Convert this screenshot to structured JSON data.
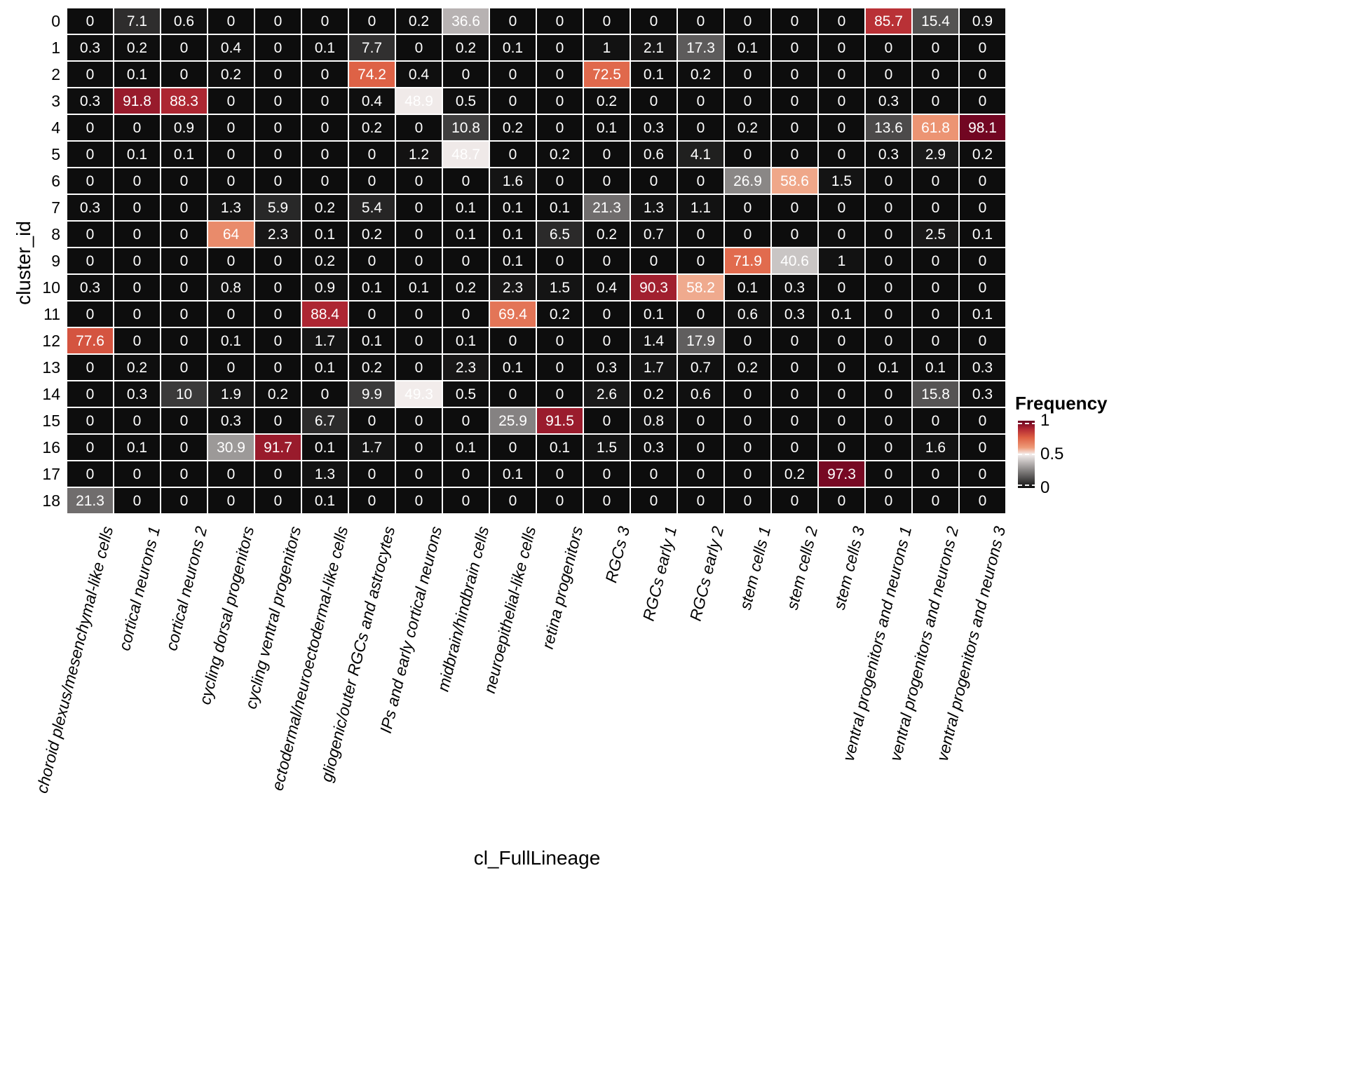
{
  "chart_data": {
    "type": "heatmap",
    "title": "",
    "xlabel": "cl_FullLineage",
    "ylabel": "cluster_id",
    "columns": [
      "choroid plexus/mesenchymal-like cells",
      "cortical neurons 1",
      "cortical neurons 2",
      "cycling dorsal progenitors",
      "cycling ventral progenitors",
      "ectodermal/neuroectodermal-like cells",
      "gliogenic/outer RGCs and astrocytes",
      "IPs and early cortical neurons",
      "midbrain/hindbrain cells",
      "neuroepithelial-like cells",
      "retina progenitors",
      "RGCs 3",
      "RGCs early 1",
      "RGCs early 2",
      "stem cells 1",
      "stem cells 2",
      "stem cells 3",
      "ventral progenitors and neurons 1",
      "ventral progenitors and neurons 2",
      "ventral progenitors and neurons 3"
    ],
    "rows": [
      "0",
      "1",
      "2",
      "3",
      "4",
      "5",
      "6",
      "7",
      "8",
      "9",
      "10",
      "11",
      "12",
      "13",
      "14",
      "15",
      "16",
      "17",
      "18"
    ],
    "values": [
      [
        "0",
        "7.1",
        "0.6",
        "0",
        "0",
        "0",
        "0",
        "0.2",
        "36.6",
        "0",
        "0",
        "0",
        "0",
        "0",
        "0",
        "0",
        "0",
        "85.7",
        "15.4",
        "0.9"
      ],
      [
        "0.3",
        "0.2",
        "0",
        "0.4",
        "0",
        "0.1",
        "7.7",
        "0",
        "0.2",
        "0.1",
        "0",
        "1",
        "2.1",
        "17.3",
        "0.1",
        "0",
        "0",
        "0",
        "0",
        "0"
      ],
      [
        "0",
        "0.1",
        "0",
        "0.2",
        "0",
        "0",
        "74.2",
        "0.4",
        "0",
        "0",
        "0",
        "72.5",
        "0.1",
        "0.2",
        "0",
        "0",
        "0",
        "0",
        "0",
        "0"
      ],
      [
        "0.3",
        "91.8",
        "88.3",
        "0",
        "0",
        "0",
        "0.4",
        "48.9",
        "0.5",
        "0",
        "0",
        "0.2",
        "0",
        "0",
        "0",
        "0",
        "0",
        "0.3",
        "0",
        "0"
      ],
      [
        "0",
        "0",
        "0.9",
        "0",
        "0",
        "0",
        "0.2",
        "0",
        "10.8",
        "0.2",
        "0",
        "0.1",
        "0.3",
        "0",
        "0.2",
        "0",
        "0",
        "13.6",
        "61.8",
        "98.1"
      ],
      [
        "0",
        "0.1",
        "0.1",
        "0",
        "0",
        "0",
        "0",
        "1.2",
        "48.7",
        "0",
        "0.2",
        "0",
        "0.6",
        "4.1",
        "0",
        "0",
        "0",
        "0.3",
        "2.9",
        "0.2"
      ],
      [
        "0",
        "0",
        "0",
        "0",
        "0",
        "0",
        "0",
        "0",
        "0",
        "1.6",
        "0",
        "0",
        "0",
        "0",
        "26.9",
        "58.6",
        "1.5",
        "0",
        "0",
        "0"
      ],
      [
        "0.3",
        "0",
        "0",
        "1.3",
        "5.9",
        "0.2",
        "5.4",
        "0",
        "0.1",
        "0.1",
        "0.1",
        "21.3",
        "1.3",
        "1.1",
        "0",
        "0",
        "0",
        "0",
        "0",
        "0"
      ],
      [
        "0",
        "0",
        "0",
        "64",
        "2.3",
        "0.1",
        "0.2",
        "0",
        "0.1",
        "0.1",
        "6.5",
        "0.2",
        "0.7",
        "0",
        "0",
        "0",
        "0",
        "0",
        "2.5",
        "0.1"
      ],
      [
        "0",
        "0",
        "0",
        "0",
        "0",
        "0.2",
        "0",
        "0",
        "0",
        "0.1",
        "0",
        "0",
        "0",
        "0",
        "71.9",
        "40.6",
        "1",
        "0",
        "0",
        "0"
      ],
      [
        "0.3",
        "0",
        "0",
        "0.8",
        "0",
        "0.9",
        "0.1",
        "0.1",
        "0.2",
        "2.3",
        "1.5",
        "0.4",
        "90.3",
        "58.2",
        "0.1",
        "0.3",
        "0",
        "0",
        "0",
        "0"
      ],
      [
        "0",
        "0",
        "0",
        "0",
        "0",
        "88.4",
        "0",
        "0",
        "0",
        "69.4",
        "0.2",
        "0",
        "0.1",
        "0",
        "0.6",
        "0.3",
        "0.1",
        "0",
        "0",
        "0.1"
      ],
      [
        "77.6",
        "0",
        "0",
        "0.1",
        "0",
        "1.7",
        "0.1",
        "0",
        "0.1",
        "0",
        "0",
        "0",
        "1.4",
        "17.9",
        "0",
        "0",
        "0",
        "0",
        "0",
        "0"
      ],
      [
        "0",
        "0.2",
        "0",
        "0",
        "0",
        "0.1",
        "0.2",
        "0",
        "2.3",
        "0.1",
        "0",
        "0.3",
        "1.7",
        "0.7",
        "0.2",
        "0",
        "0",
        "0.1",
        "0.1",
        "0.3"
      ],
      [
        "0",
        "0.3",
        "10",
        "1.9",
        "0.2",
        "0",
        "9.9",
        "49.3",
        "0.5",
        "0",
        "0",
        "2.6",
        "0.2",
        "0.6",
        "0",
        "0",
        "0",
        "0",
        "15.8",
        "0.3"
      ],
      [
        "0",
        "0",
        "0",
        "0.3",
        "0",
        "6.7",
        "0",
        "0",
        "0",
        "25.9",
        "91.5",
        "0",
        "0.8",
        "0",
        "0",
        "0",
        "0",
        "0",
        "0",
        "0"
      ],
      [
        "0",
        "0.1",
        "0",
        "30.9",
        "91.7",
        "0.1",
        "1.7",
        "0",
        "0.1",
        "0",
        "0.1",
        "1.5",
        "0.3",
        "0",
        "0",
        "0",
        "0",
        "0",
        "1.6",
        "0"
      ],
      [
        "0",
        "0",
        "0",
        "0",
        "0",
        "1.3",
        "0",
        "0",
        "0",
        "0.1",
        "0",
        "0",
        "0",
        "0",
        "0",
        "0.2",
        "97.3",
        "0",
        "0",
        "0"
      ],
      [
        "21.3",
        "0",
        "0",
        "0",
        "0",
        "0.1",
        "0",
        "0",
        "0",
        "0",
        "0",
        "0",
        "0",
        "0",
        "0",
        "0",
        "0",
        "0",
        "0",
        "0"
      ]
    ],
    "legend": {
      "title": "Frequency",
      "ticks": [
        {
          "label": "1",
          "value": 1
        },
        {
          "label": "0.5",
          "value": 0.5
        },
        {
          "label": "0",
          "value": 0
        }
      ],
      "min": 0,
      "max": 1
    },
    "colors": {
      "scale_stops": [
        [
          0,
          "#0d0d0d"
        ],
        [
          0.5,
          "#f5efee"
        ],
        [
          0.6,
          "#ee9b79"
        ],
        [
          0.75,
          "#dd5f43"
        ],
        [
          0.87,
          "#b52b34"
        ],
        [
          1,
          "#67001f"
        ]
      ],
      "cell_text": "#ffffff",
      "background": "#ffffff",
      "label_text": "#000000"
    }
  }
}
